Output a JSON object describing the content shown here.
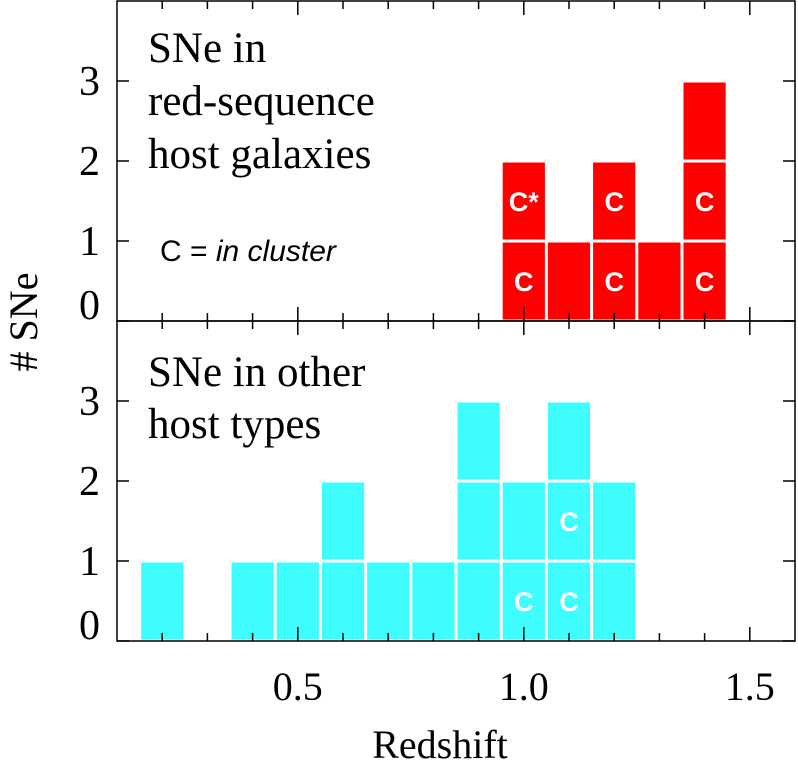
{
  "chart_data": {
    "type": "bar",
    "ylabel": "# SNe",
    "xlabel": "Redshift",
    "xlim": [
      0.1,
      1.6
    ],
    "x_ticks": [
      0.5,
      1.0,
      1.5
    ],
    "x_tick_labels": [
      "0.5",
      "1.0",
      "1.5"
    ],
    "ylim": [
      0,
      4
    ],
    "y_ticks": [
      0,
      1,
      2,
      3
    ],
    "y_tick_labels": [
      "0",
      "1",
      "2",
      "3"
    ],
    "bin_width": 0.1,
    "panels": [
      {
        "id": "red-sequence",
        "label_lines": [
          "SNe in",
          "red-sequence",
          "host galaxies"
        ],
        "legend_note_prefix": "C = ",
        "legend_note_italic": "in cluster",
        "color": "#ff0000",
        "bins": [
          {
            "x": 1.0,
            "count": 2,
            "marks": [
              "C",
              "C*"
            ]
          },
          {
            "x": 1.1,
            "count": 1,
            "marks": [
              ""
            ]
          },
          {
            "x": 1.2,
            "count": 2,
            "marks": [
              "C",
              "C"
            ]
          },
          {
            "x": 1.3,
            "count": 1,
            "marks": [
              ""
            ]
          },
          {
            "x": 1.4,
            "count": 3,
            "marks": [
              "C",
              "C",
              ""
            ]
          }
        ]
      },
      {
        "id": "other-hosts",
        "label_lines": [
          "SNe in other",
          "host types"
        ],
        "color": "#3ffcff",
        "bins": [
          {
            "x": 0.2,
            "count": 1,
            "marks": [
              ""
            ]
          },
          {
            "x": 0.4,
            "count": 1,
            "marks": [
              ""
            ]
          },
          {
            "x": 0.5,
            "count": 1,
            "marks": [
              ""
            ]
          },
          {
            "x": 0.6,
            "count": 2,
            "marks": [
              "",
              ""
            ]
          },
          {
            "x": 0.7,
            "count": 1,
            "marks": [
              ""
            ]
          },
          {
            "x": 0.8,
            "count": 1,
            "marks": [
              ""
            ]
          },
          {
            "x": 0.9,
            "count": 3,
            "marks": [
              "",
              "",
              ""
            ]
          },
          {
            "x": 1.0,
            "count": 2,
            "marks": [
              "C",
              ""
            ]
          },
          {
            "x": 1.1,
            "count": 3,
            "marks": [
              "C",
              "C",
              ""
            ]
          },
          {
            "x": 1.2,
            "count": 2,
            "marks": [
              "",
              ""
            ]
          }
        ]
      }
    ]
  }
}
